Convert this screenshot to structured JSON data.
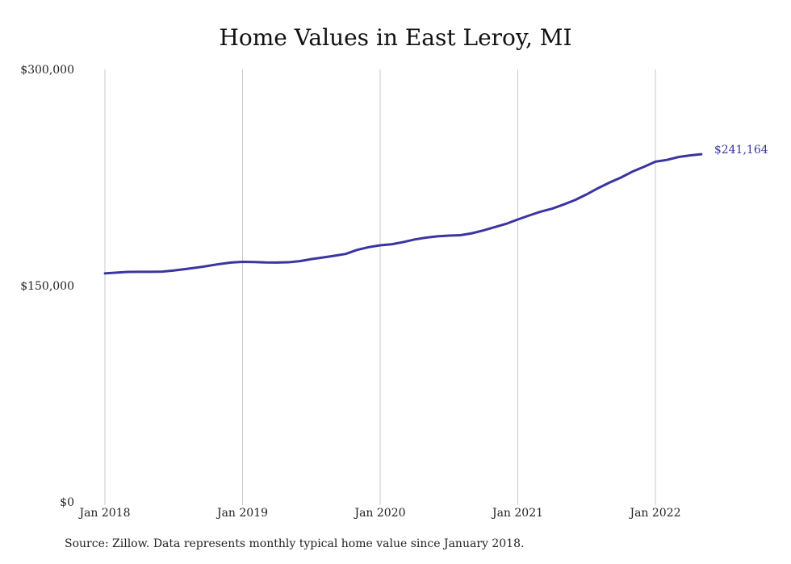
{
  "title": "Home Values in East Leroy, MI",
  "source": "Source: Zillow. Data represents monthly typical home value since January 2018.",
  "colors": {
    "line": "#3a35a0",
    "grid": "#c8c8c8",
    "text": "#222222"
  },
  "chart_data": {
    "type": "line",
    "title": "Home Values in East Leroy, MI",
    "xlabel": "",
    "ylabel": "",
    "ylim": [
      0,
      300000
    ],
    "xlim": [
      "2018-01",
      "2022-05"
    ],
    "y_ticks": [
      {
        "value": 0,
        "label": "$0"
      },
      {
        "value": 150000,
        "label": "$150,000"
      },
      {
        "value": 300000,
        "label": "$300,000"
      }
    ],
    "x_ticks": [
      {
        "value": "2018-01",
        "label": "Jan 2018"
      },
      {
        "value": "2019-01",
        "label": "Jan 2019"
      },
      {
        "value": "2020-01",
        "label": "Jan 2020"
      },
      {
        "value": "2021-01",
        "label": "Jan 2021"
      },
      {
        "value": "2022-01",
        "label": "Jan 2022"
      }
    ],
    "grid": "vertical lines at year ticks",
    "end_label": "$241,164",
    "series": [
      {
        "x": [
          "2018-01",
          "2018-02",
          "2018-03",
          "2018-04",
          "2018-05",
          "2018-06",
          "2018-07",
          "2018-08",
          "2018-09",
          "2018-10",
          "2018-11",
          "2018-12",
          "2019-01",
          "2019-02",
          "2019-03",
          "2019-04",
          "2019-05",
          "2019-06",
          "2019-07",
          "2019-08",
          "2019-09",
          "2019-10",
          "2019-11",
          "2019-12",
          "2020-01",
          "2020-02",
          "2020-03",
          "2020-04",
          "2020-05",
          "2020-06",
          "2020-07",
          "2020-08",
          "2020-09",
          "2020-10",
          "2020-11",
          "2020-12",
          "2021-01",
          "2021-02",
          "2021-03",
          "2021-04",
          "2021-05",
          "2021-06",
          "2021-07",
          "2021-08",
          "2021-09",
          "2021-10",
          "2021-11",
          "2021-12",
          "2022-01",
          "2022-02",
          "2022-03",
          "2022-04",
          "2022-05"
        ],
        "values": [
          158500,
          159000,
          159500,
          159600,
          159600,
          159700,
          160500,
          161500,
          162500,
          163700,
          165000,
          166000,
          166500,
          166400,
          166100,
          166000,
          166200,
          167000,
          168400,
          169500,
          170700,
          172000,
          174800,
          176700,
          178000,
          178700,
          180200,
          182000,
          183300,
          184200,
          184700,
          185000,
          186300,
          188300,
          190600,
          192900,
          195900,
          198700,
          201300,
          203400,
          206300,
          209400,
          213300,
          217600,
          221500,
          225000,
          229100,
          232400,
          236000,
          237200,
          239200,
          240300,
          241164
        ]
      }
    ]
  }
}
